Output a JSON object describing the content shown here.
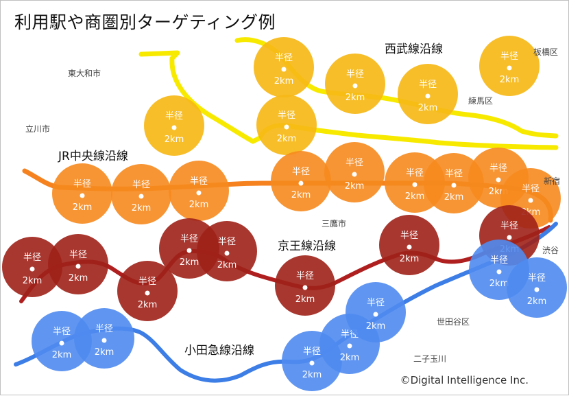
{
  "title": "利用駅や商圏別ターゲティング例",
  "circle_label": {
    "top": "半径",
    "bottom": "2km"
  },
  "colors": {
    "seibu": "#F7EA00",
    "chuo": "#F5821F",
    "keio": "#B01F1F",
    "odakyu": "#3C7DE6",
    "circle_seibu": "#F6B817",
    "circle_chuo": "#F6891E",
    "circle_keio": "#9E2118",
    "circle_odakyu": "#4F8BEF"
  },
  "lines": {
    "seibu": {
      "label": "西武線沿線"
    },
    "chuo": {
      "label": "JR中央線沿線"
    },
    "keio": {
      "label": "京王線沿線"
    },
    "odakyu": {
      "label": "小田急線沿線"
    }
  },
  "places": {
    "higashiyamato": "東大和市",
    "tachikawa": "立川市",
    "itabashi": "板橋区",
    "nerima": "練馬区",
    "shinjuku": "新宿",
    "mitaka": "三鷹市",
    "shibuya": "渋谷",
    "setagaya": "世田谷区",
    "futakotamagawa": "二子玉川"
  },
  "copyright": "©Digital Intelligence Inc."
}
